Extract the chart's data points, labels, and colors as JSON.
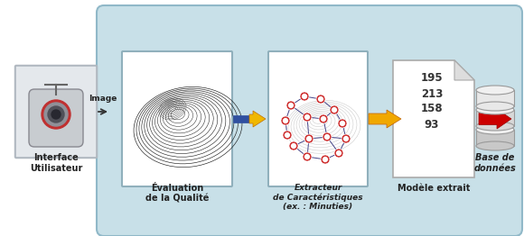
{
  "labels": {
    "interface": "Interface\nUtilisateur",
    "image_arrow": "Image",
    "eval": "Évaluation\nde la Qualité",
    "extractor": "Extracteur\nde Caractéristiques\n(ex. : Minuties)",
    "model": "Modèle extrait",
    "database": "Base de\ndonnées"
  },
  "numbers": [
    "195",
    "213",
    "158",
    "93"
  ],
  "panel_fc": "#c8e0e8",
  "panel_ec": "#90b8c8",
  "box_fc": "white",
  "box_ec": "#90b8c8",
  "arrow_yellow": "#f0b800",
  "arrow_yellow_dark": "#c07000",
  "arrow_red": "#cc0000",
  "arrow_black": "#333333",
  "label_color": "#222222",
  "number_color": "#333333"
}
